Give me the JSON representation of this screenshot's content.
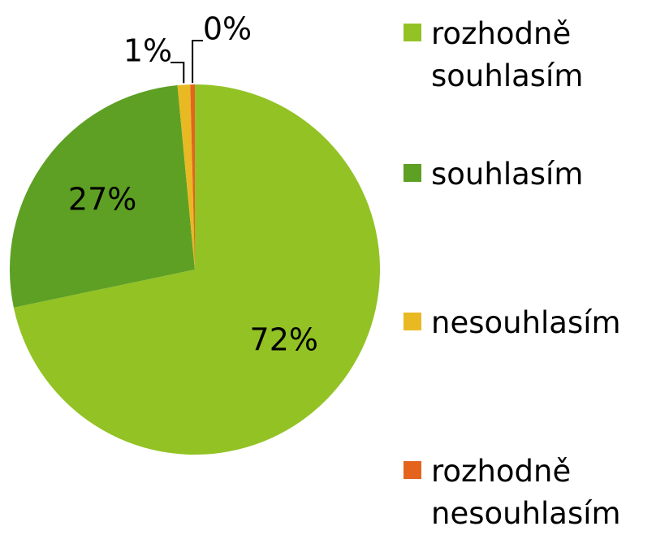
{
  "chart_data": {
    "type": "pie",
    "categories": [
      "rozhodně souhlasím",
      "souhlasím",
      "nesouhlasím",
      "rozhodně nesouhlasím"
    ],
    "values": [
      71.7,
      26.8,
      1.1,
      0.4
    ],
    "value_labels": [
      "72%",
      "27%",
      "1%",
      "0%"
    ],
    "colors": [
      "#93c225",
      "#5ea023",
      "#e8b923",
      "#e4641e"
    ],
    "legend": "right"
  }
}
